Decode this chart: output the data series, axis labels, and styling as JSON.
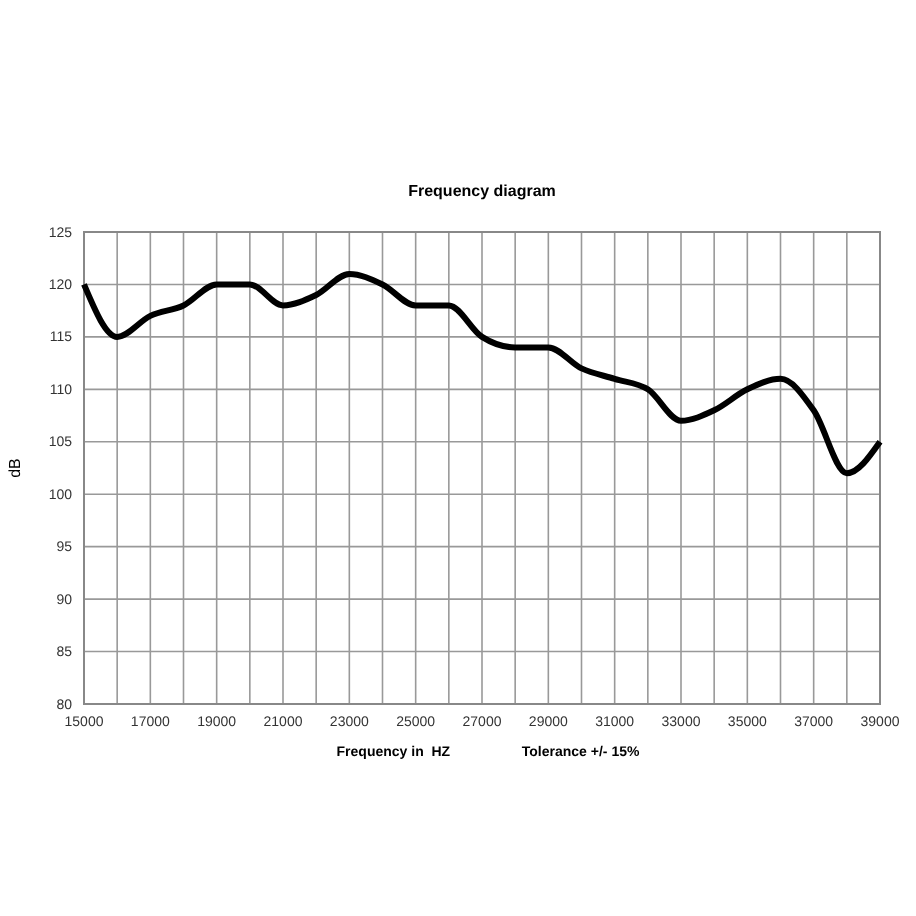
{
  "chart_data": {
    "type": "line",
    "title": "Frequency diagram",
    "xlabel": "Frequency in  HZ",
    "ylabel": "dB",
    "annotations": [
      "Tolerance +/- 15%"
    ],
    "x": [
      15000,
      16000,
      17000,
      18000,
      19000,
      20000,
      21000,
      22000,
      23000,
      24000,
      25000,
      26000,
      27000,
      28000,
      29000,
      30000,
      31000,
      32000,
      33000,
      34000,
      35000,
      36000,
      37000,
      38000,
      39000
    ],
    "series": [
      {
        "color": "#000000",
        "values": [
          120,
          115,
          117,
          118,
          120,
          120,
          118,
          119,
          121,
          120,
          118,
          118,
          115,
          114,
          114,
          112,
          111,
          110,
          107,
          108,
          110,
          111,
          108,
          102,
          105
        ]
      }
    ],
    "xlim": [
      15000,
      39000
    ],
    "xticks": [
      15000,
      {
        "value": 16000,
        "label": null
      },
      17000,
      {
        "value": 18000,
        "label": null
      },
      19000,
      {
        "value": 20000,
        "label": null
      },
      21000,
      {
        "value": 22000,
        "label": null
      },
      23000,
      {
        "value": 24000,
        "label": null
      },
      25000,
      {
        "value": 26000,
        "label": null
      },
      27000,
      {
        "value": 28000,
        "label": null
      },
      29000,
      {
        "value": 30000,
        "label": null
      },
      31000,
      {
        "value": 32000,
        "label": null
      },
      33000,
      {
        "value": 34000,
        "label": null
      },
      35000,
      {
        "value": 36000,
        "label": null
      },
      37000,
      {
        "value": 38000,
        "label": null
      },
      39000
    ],
    "ylim": [
      80,
      125
    ],
    "yticks": [
      80,
      85,
      90,
      95,
      100,
      105,
      110,
      115,
      120,
      125
    ],
    "grid": true,
    "marker": "none",
    "line_style": "solid"
  }
}
